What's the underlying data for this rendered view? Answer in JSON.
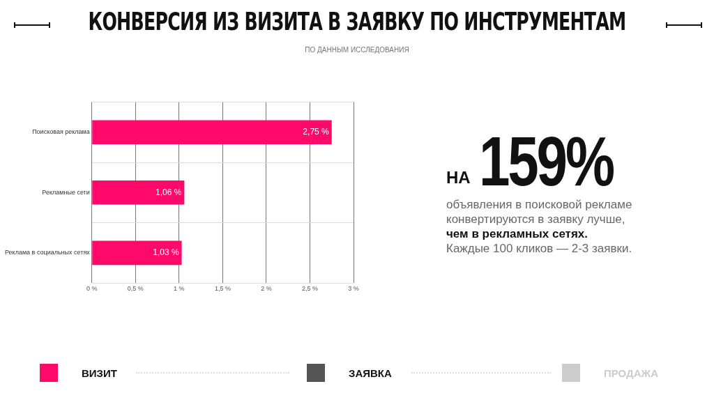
{
  "chart_data": {
    "type": "bar",
    "orientation": "horizontal",
    "title": "КОНВЕРСИЯ ИЗ ВИЗИТА В ЗАЯВКУ ПО ИНСТРУМЕНТАМ",
    "subtitle": "ПО ДАННЫМ ИССЛЕДОВАНИЯ",
    "categories": [
      "Поисковая реклама",
      "Рекламные сети",
      "Реклама в социальных сетях"
    ],
    "values": [
      2.75,
      1.06,
      1.03
    ],
    "color": "#ff0a6a",
    "value_labels": [
      "2,75 %",
      "1,06 %",
      "1,03 %"
    ],
    "xlim": [
      0,
      3
    ],
    "xticks": [
      {
        "value": 0,
        "label": "0 %"
      },
      {
        "value": 0.5,
        "label": "0,5 %"
      },
      {
        "value": 1,
        "label": "1 %"
      },
      {
        "value": 1.5,
        "label": "1,5 %"
      },
      {
        "value": 2,
        "label": "2 %"
      },
      {
        "value": 2.5,
        "label": "2,5 %"
      },
      {
        "value": 3,
        "label": "3 %"
      }
    ],
    "grid": true,
    "legend": false,
    "annotations": [
      "НА",
      "159%",
      "объявления в поисковой рекламе",
      "конвертируются в заявку лучше,",
      "чем в рекламных сетях.",
      "Каждые 100 кликов — 2-3 заявки.",
      "ВИЗИТ",
      "ЗАЯВКА",
      "ПРОДАЖА"
    ]
  }
}
